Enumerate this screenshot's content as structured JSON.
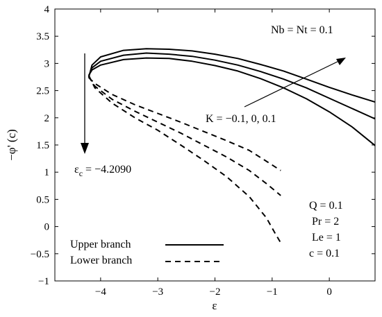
{
  "chart_data": {
    "type": "line",
    "xlabel": "ε",
    "ylabel": "−φ' (c)",
    "xlim": [
      -4.8,
      0.8
    ],
    "ylim": [
      -1,
      4
    ],
    "xticks": [
      -4,
      -3,
      -2,
      -1,
      0
    ],
    "xtick_labels": [
      "−4",
      "−3",
      "−2",
      "−1",
      "0"
    ],
    "yticks": [
      -1,
      -0.5,
      0,
      0.5,
      1,
      1.5,
      2,
      2.5,
      3,
      3.5,
      4
    ],
    "ytick_labels": [
      "−1",
      "−0.5",
      "0",
      "0.5",
      "1",
      "1.5",
      "2",
      "2.5",
      "3",
      "3.5",
      "4"
    ],
    "grid": false,
    "legend_placement": "bottom-left",
    "legend": [
      {
        "label": "Upper branch",
        "style": "solid"
      },
      {
        "label": "Lower branch",
        "style": "dashed"
      }
    ],
    "annotations": {
      "nb_nt": "Nb = Nt = 0.1",
      "k_values": "K = −0.1, 0, 0.1",
      "critical_symbol": "ε",
      "critical_sub": "c",
      "critical_value": " = −4.2090",
      "params": [
        "Q = 0.1",
        "Pr = 2",
        "Le = 1",
        "c = 0.1"
      ]
    },
    "series": [
      {
        "branch": "upper",
        "style": "solid",
        "points": [
          [
            -4.209,
            2.74
          ],
          [
            -4.15,
            2.97
          ],
          [
            -4.0,
            3.12
          ],
          [
            -3.6,
            3.24
          ],
          [
            -3.2,
            3.27
          ],
          [
            -2.8,
            3.26
          ],
          [
            -2.4,
            3.23
          ],
          [
            -2.0,
            3.17
          ],
          [
            -1.6,
            3.09
          ],
          [
            -1.2,
            2.98
          ],
          [
            -0.8,
            2.86
          ],
          [
            -0.4,
            2.71
          ],
          [
            0.0,
            2.56
          ],
          [
            0.4,
            2.42
          ],
          [
            0.8,
            2.29
          ]
        ]
      },
      {
        "branch": "upper",
        "style": "solid",
        "points": [
          [
            -4.209,
            2.76
          ],
          [
            -4.15,
            2.92
          ],
          [
            -4.0,
            3.04
          ],
          [
            -3.6,
            3.15
          ],
          [
            -3.2,
            3.19
          ],
          [
            -2.8,
            3.17
          ],
          [
            -2.4,
            3.13
          ],
          [
            -2.0,
            3.06
          ],
          [
            -1.6,
            2.97
          ],
          [
            -1.2,
            2.85
          ],
          [
            -0.8,
            2.71
          ],
          [
            -0.4,
            2.55
          ],
          [
            0.0,
            2.36
          ],
          [
            0.4,
            2.17
          ],
          [
            0.8,
            1.98
          ]
        ]
      },
      {
        "branch": "upper",
        "style": "solid",
        "points": [
          [
            -4.209,
            2.78
          ],
          [
            -4.15,
            2.88
          ],
          [
            -4.0,
            2.97
          ],
          [
            -3.6,
            3.07
          ],
          [
            -3.2,
            3.1
          ],
          [
            -2.8,
            3.09
          ],
          [
            -2.4,
            3.04
          ],
          [
            -2.0,
            2.96
          ],
          [
            -1.6,
            2.86
          ],
          [
            -1.2,
            2.72
          ],
          [
            -0.8,
            2.55
          ],
          [
            -0.4,
            2.35
          ],
          [
            0.0,
            2.11
          ],
          [
            0.4,
            1.83
          ],
          [
            0.8,
            1.49
          ]
        ]
      },
      {
        "branch": "lower",
        "style": "dashed",
        "points": [
          [
            -4.209,
            2.74
          ],
          [
            -4.1,
            2.63
          ],
          [
            -3.8,
            2.43
          ],
          [
            -3.4,
            2.24
          ],
          [
            -3.0,
            2.08
          ],
          [
            -2.6,
            1.92
          ],
          [
            -2.2,
            1.75
          ],
          [
            -1.8,
            1.58
          ],
          [
            -1.4,
            1.4
          ],
          [
            -1.1,
            1.2
          ],
          [
            -0.85,
            1.03
          ]
        ]
      },
      {
        "branch": "lower",
        "style": "dashed",
        "points": [
          [
            -4.209,
            2.76
          ],
          [
            -4.1,
            2.58
          ],
          [
            -3.8,
            2.34
          ],
          [
            -3.4,
            2.12
          ],
          [
            -3.0,
            1.92
          ],
          [
            -2.6,
            1.72
          ],
          [
            -2.2,
            1.5
          ],
          [
            -1.8,
            1.28
          ],
          [
            -1.4,
            1.03
          ],
          [
            -1.1,
            0.79
          ],
          [
            -0.85,
            0.57
          ]
        ]
      },
      {
        "branch": "lower",
        "style": "dashed",
        "points": [
          [
            -4.209,
            2.78
          ],
          [
            -4.1,
            2.55
          ],
          [
            -3.8,
            2.27
          ],
          [
            -3.4,
            2.0
          ],
          [
            -3.0,
            1.77
          ],
          [
            -2.6,
            1.5
          ],
          [
            -2.2,
            1.22
          ],
          [
            -1.8,
            0.92
          ],
          [
            -1.4,
            0.55
          ],
          [
            -1.1,
            0.16
          ],
          [
            -0.95,
            -0.12
          ],
          [
            -0.85,
            -0.3
          ]
        ]
      }
    ]
  }
}
